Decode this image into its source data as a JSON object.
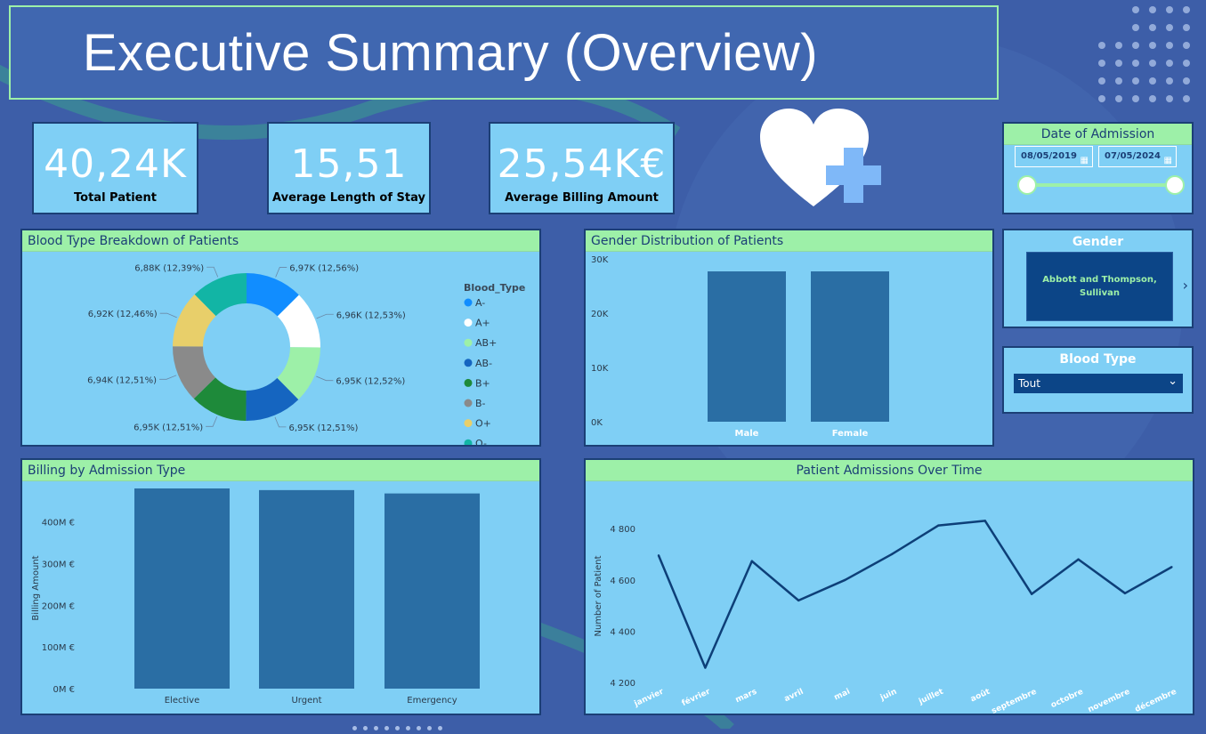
{
  "title": "Executive Summary (Overview)",
  "kpis": [
    {
      "value": "40,24K",
      "label": "Total Patient"
    },
    {
      "value": "15,51",
      "label": "Average Length of Stay"
    },
    {
      "value": "25,54K€",
      "label": "Average Billing Amount"
    }
  ],
  "date_slicer": {
    "title": "Date of Admission",
    "start": "08/05/2019",
    "end": "07/05/2024"
  },
  "gender_slicer": {
    "title": "Gender",
    "card_text": "Abbott and Thompson, Sullivan"
  },
  "blood_slicer": {
    "title": "Blood Type",
    "selected": "Tout"
  },
  "colors": {
    "accent_green": "#9df0a8",
    "panel_bg": "#7fcff5",
    "bar": "#2a6ea4",
    "line": "#0d3f78",
    "page_bg": "#3d5ea8"
  },
  "chart_data": [
    {
      "type": "pie",
      "title": "Blood Type Breakdown of Patients",
      "legend_title": "Blood_Type",
      "legend_placement": "right",
      "categories": [
        "A-",
        "A+",
        "AB+",
        "AB-",
        "B+",
        "B-",
        "O+",
        "O-"
      ],
      "values": [
        6970,
        6960,
        6950,
        6950,
        6950,
        6940,
        6920,
        6880
      ],
      "data_labels": [
        "6,97K (12,56%)",
        "6,96K (12,53%)",
        "6,95K (12,52%)",
        "6,95K (12,51%)",
        "6,95K (12,51%)",
        "6,94K (12,51%)",
        "6,92K (12,46%)",
        "6,88K (12,39%)"
      ],
      "colors": [
        "#118dff",
        "#ffffff",
        "#9df0a8",
        "#1565c0",
        "#1e8a3a",
        "#8a8a8a",
        "#e8cf6a",
        "#12b5a5"
      ]
    },
    {
      "type": "bar",
      "title": "Gender Distribution of Patients",
      "categories": [
        "Male",
        "Female"
      ],
      "values": [
        27700,
        27700
      ],
      "ylim": [
        0,
        30000
      ],
      "yticks": [
        "0K",
        "10K",
        "20K",
        "30K"
      ],
      "ytick_values": [
        0,
        10000,
        20000,
        30000
      ]
    },
    {
      "type": "bar",
      "title": "Billing by Admission Type",
      "categories": [
        "Elective",
        "Urgent",
        "Emergency"
      ],
      "values": [
        480,
        476,
        468
      ],
      "ylabel": "Billing Amount",
      "ylim": [
        0,
        480
      ],
      "yticks": [
        "0M €",
        "100M €",
        "200M €",
        "300M €",
        "400M €"
      ],
      "ytick_values": [
        0,
        100,
        200,
        300,
        400
      ]
    },
    {
      "type": "line",
      "title": "Patient Admissions Over Time",
      "ylabel": "Number of Patient",
      "categories": [
        "janvier",
        "février",
        "mars",
        "avril",
        "mai",
        "juin",
        "juillet",
        "août",
        "septembre",
        "octobre",
        "novembre",
        "décembre"
      ],
      "values": [
        4695,
        4258,
        4673,
        4520,
        4600,
        4700,
        4812,
        4830,
        4545,
        4680,
        4548,
        4650
      ],
      "ylim": [
        4180,
        4880
      ],
      "yticks": [
        "4 200",
        "4 400",
        "4 600",
        "4 800"
      ],
      "ytick_values": [
        4200,
        4400,
        4600,
        4800
      ]
    }
  ]
}
